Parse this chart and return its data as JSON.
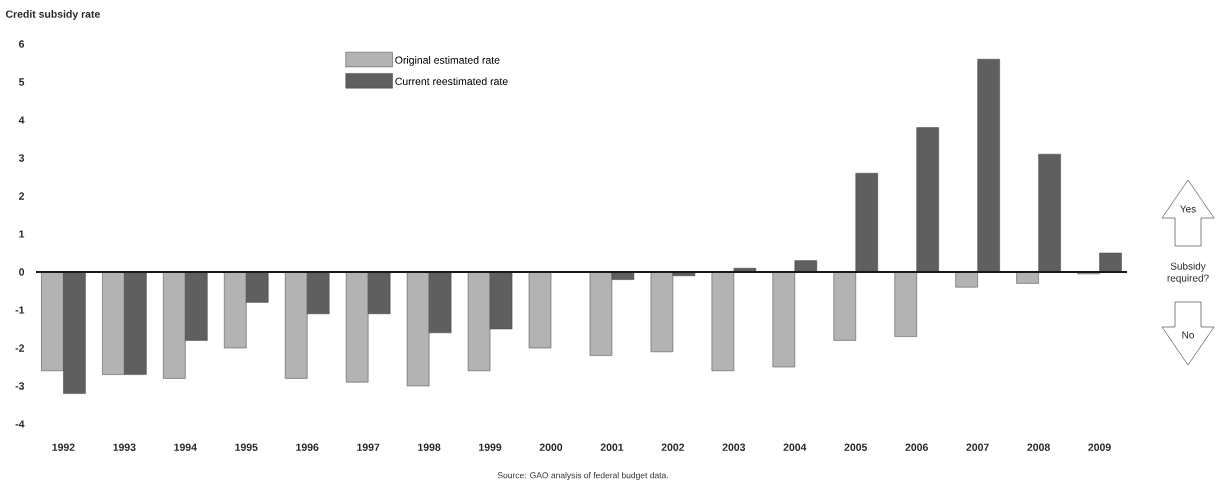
{
  "chart_data": {
    "type": "bar",
    "ylabel": "Credit subsidy rate",
    "categories": [
      "1992",
      "1993",
      "1994",
      "1995",
      "1996",
      "1997",
      "1998",
      "1999",
      "2000",
      "2001",
      "2002",
      "2003",
      "2004",
      "2005",
      "2006",
      "2007",
      "2008",
      "2009"
    ],
    "series": [
      {
        "name": "Original estimated rate",
        "color": "#b3b3b3",
        "values": [
          -2.6,
          -2.7,
          -2.8,
          -2.0,
          -2.8,
          -2.9,
          -3.0,
          -2.6,
          -2.0,
          -2.2,
          -2.1,
          -2.6,
          -2.5,
          -1.8,
          -1.7,
          -0.4,
          -0.3,
          -0.05
        ]
      },
      {
        "name": "Current reestimated rate",
        "color": "#5f5f5f",
        "values": [
          -3.2,
          -2.7,
          -1.8,
          -0.8,
          -1.1,
          -1.1,
          -1.6,
          -1.5,
          null,
          -0.2,
          -0.1,
          0.1,
          0.3,
          2.6,
          3.8,
          5.6,
          3.1,
          0.5
        ]
      }
    ],
    "ylim": [
      -4,
      6
    ],
    "yticks": [
      -4,
      -3,
      -2,
      -1,
      0,
      1,
      2,
      3,
      4,
      5,
      6
    ],
    "legend": "top",
    "annotations": [
      "Source: GAO analysis of federal budget data.",
      "Yes",
      "Subsidy required?",
      "No"
    ]
  }
}
